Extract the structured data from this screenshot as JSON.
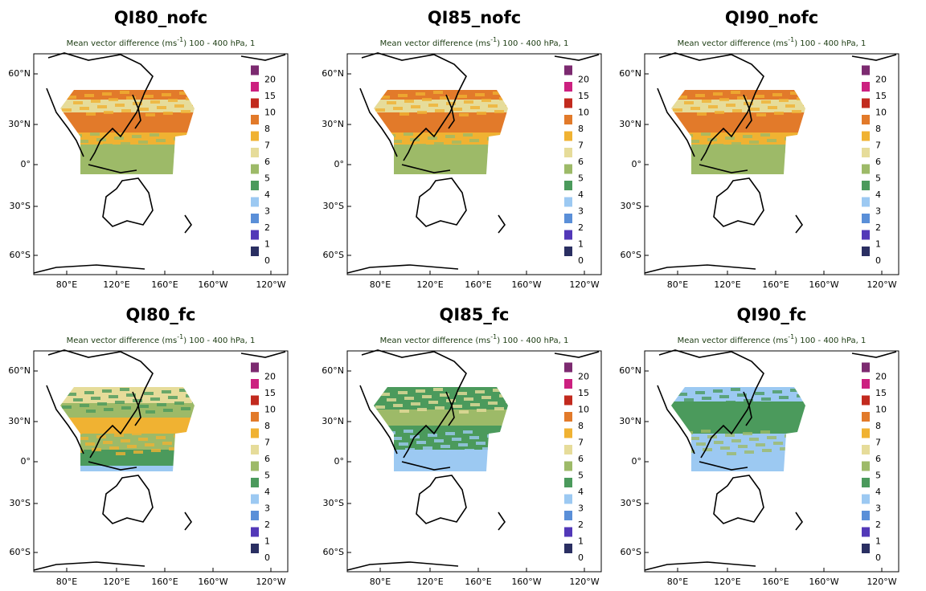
{
  "panels": [
    {
      "title": "QI80_nofc"
    },
    {
      "title": "QI85_nofc"
    },
    {
      "title": "QI90_nofc"
    },
    {
      "title": "QI80_fc"
    },
    {
      "title": "QI85_fc"
    },
    {
      "title": "QI90_fc"
    }
  ],
  "subtitle": {
    "text": "Mean vector difference (ms",
    "sup": "-1",
    "rest": ") 100 - 400 hPa, 1"
  },
  "lat_labels": [
    "60°N",
    "30°N",
    "0°",
    "30°S",
    "60°S"
  ],
  "lon_labels": [
    "80°E",
    "120°E",
    "160°E",
    "160°W",
    "120°W"
  ],
  "legend": {
    "values": [
      0,
      1,
      2,
      3,
      4,
      5,
      6,
      7,
      8,
      10,
      15,
      20
    ],
    "colors": [
      "#2a2f62",
      "#5238b8",
      "#5a8fd8",
      "#9cc9f2",
      "#4b9a5c",
      "#9dba68",
      "#e6dc9a",
      "#f0b232",
      "#e27a2a",
      "#c22a1e",
      "#cc2080",
      "#7c2a70"
    ]
  }
}
